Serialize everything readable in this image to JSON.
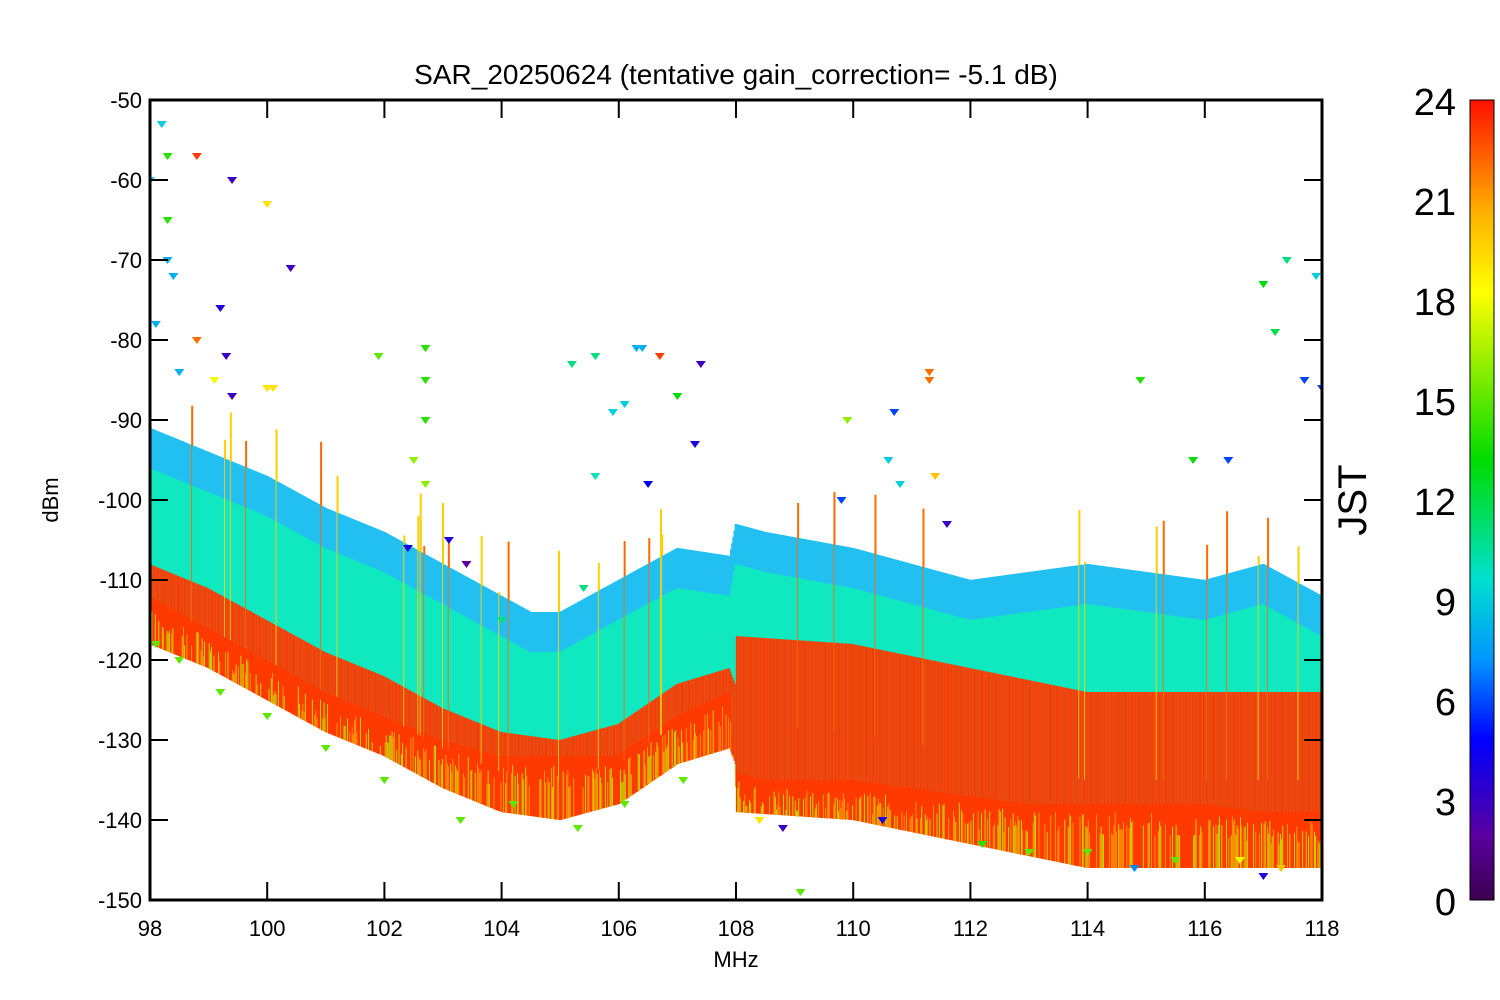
{
  "chart_data": {
    "type": "scatter",
    "title": "SAR_20250624 (tentative gain_correction= -5.1 dB)",
    "xlabel": "MHz",
    "ylabel": "dBm",
    "xlim": [
      98,
      118
    ],
    "ylim": [
      -150,
      -50
    ],
    "xticks": [
      "98",
      "100",
      "102",
      "104",
      "106",
      "108",
      "110",
      "112",
      "114",
      "116",
      "118"
    ],
    "yticks": [
      "-50",
      "-60",
      "-70",
      "-80",
      "-90",
      "-100",
      "-110",
      "-120",
      "-130",
      "-140",
      "-150"
    ],
    "grid": false,
    "colorbar": {
      "label": "JST",
      "range": [
        0,
        24
      ],
      "ticks": [
        "24",
        "21",
        "18",
        "15",
        "12",
        "9",
        "6",
        "3",
        "0"
      ],
      "colormap": "rainbow (purple-blue-cyan-green-yellow-orange-red)"
    },
    "series": [
      {
        "description": "noise-floor band envelope (upper edge, per frequency)",
        "x": [
          98,
          99,
          100,
          101,
          102,
          103,
          104,
          104.5,
          105,
          106,
          107,
          107.9,
          108,
          108.5,
          110,
          111,
          112,
          113,
          114,
          115,
          116,
          117,
          118
        ],
        "upper": [
          -91,
          -94,
          -97,
          -101,
          -104,
          -108,
          -112,
          -114,
          -114,
          -110,
          -106,
          -107,
          -103,
          -104,
          -106,
          -108,
          -110,
          -109,
          -108,
          -109,
          -110,
          -108,
          -112
        ],
        "lower": [
          -116,
          -120,
          -124,
          -128,
          -131,
          -134,
          -136,
          -136,
          -136,
          -136,
          -131,
          -128,
          -138,
          -139,
          -139,
          -140,
          -141,
          -142,
          -142,
          -142,
          -142,
          -143,
          -143
        ]
      },
      {
        "description": "red (late-night JST ~23) floor band",
        "x": [
          98,
          99,
          100,
          101,
          102,
          103,
          104,
          105,
          106,
          107,
          107.9,
          108,
          110,
          112,
          114,
          116,
          118
        ],
        "center": [
          -113,
          -116,
          -120,
          -124,
          -127,
          -131,
          -134,
          -135,
          -133,
          -128,
          -126,
          -128,
          -129,
          -132,
          -135,
          -135,
          -135
        ]
      },
      {
        "description": "outlier points (x MHz, y dBm, JST hour)",
        "points": [
          [
            98.2,
            -53,
            9
          ],
          [
            98.3,
            -57,
            14
          ],
          [
            98.3,
            -65,
            14
          ],
          [
            98.3,
            -70,
            8
          ],
          [
            98.0,
            -60,
            9
          ],
          [
            98.1,
            -78,
            8
          ],
          [
            98.4,
            -72,
            8
          ],
          [
            98.5,
            -84,
            8
          ],
          [
            98.8,
            -57,
            23
          ],
          [
            98.8,
            -80,
            22
          ],
          [
            99.4,
            -60,
            3
          ],
          [
            100.0,
            -63,
            19
          ],
          [
            100.4,
            -71,
            3
          ],
          [
            99.2,
            -76,
            4
          ],
          [
            99.3,
            -82,
            3
          ],
          [
            99.1,
            -85,
            18
          ],
          [
            99.4,
            -87,
            3
          ],
          [
            100.0,
            -86,
            19
          ],
          [
            100.1,
            -86,
            19
          ],
          [
            101.9,
            -82,
            15
          ],
          [
            102.7,
            -81,
            14
          ],
          [
            102.7,
            -85,
            14
          ],
          [
            102.7,
            -90,
            14
          ],
          [
            102.5,
            -95,
            16
          ],
          [
            102.7,
            -98,
            16
          ],
          [
            105.2,
            -83,
            11
          ],
          [
            105.6,
            -82,
            11
          ],
          [
            106.3,
            -81,
            8
          ],
          [
            106.4,
            -81,
            8
          ],
          [
            106.7,
            -82,
            23
          ],
          [
            107.0,
            -87,
            13
          ],
          [
            107.4,
            -83,
            3
          ],
          [
            107.3,
            -93,
            4
          ],
          [
            106.1,
            -88,
            9
          ],
          [
            105.9,
            -89,
            9
          ],
          [
            105.6,
            -97,
            10
          ],
          [
            106.5,
            -98,
            5
          ],
          [
            109.9,
            -90,
            16
          ],
          [
            110.7,
            -89,
            6
          ],
          [
            110.6,
            -95,
            9
          ],
          [
            110.8,
            -98,
            9
          ],
          [
            111.3,
            -84,
            22
          ],
          [
            111.3,
            -85,
            22
          ],
          [
            111.4,
            -97,
            20
          ],
          [
            111.6,
            -103,
            3
          ],
          [
            109.8,
            -100,
            6
          ],
          [
            114.9,
            -85,
            14
          ],
          [
            115.8,
            -95,
            13
          ],
          [
            116.4,
            -95,
            6
          ],
          [
            117.0,
            -73,
            13
          ],
          [
            117.2,
            -79,
            12
          ],
          [
            117.4,
            -70,
            11
          ],
          [
            117.9,
            -72,
            9
          ],
          [
            117.7,
            -85,
            6
          ],
          [
            118.0,
            -86,
            6
          ],
          [
            103.1,
            -105,
            4
          ],
          [
            103.4,
            -108,
            2
          ],
          [
            102.4,
            -106,
            4
          ],
          [
            104.0,
            -115,
            11
          ],
          [
            105.4,
            -111,
            11
          ],
          [
            109.1,
            -149,
            15
          ],
          [
            110.5,
            -140,
            4
          ],
          [
            114.8,
            -146,
            7
          ],
          [
            117.0,
            -147,
            4
          ],
          [
            117.3,
            -146,
            20
          ],
          [
            103.3,
            -140,
            15
          ],
          [
            104.2,
            -138,
            15
          ],
          [
            105.3,
            -141,
            15
          ],
          [
            106.1,
            -138,
            15
          ],
          [
            107.1,
            -135,
            15
          ],
          [
            98.1,
            -118,
            15
          ],
          [
            98.5,
            -120,
            15
          ],
          [
            99.2,
            -124,
            15
          ],
          [
            100.0,
            -127,
            15
          ],
          [
            101.0,
            -131,
            15
          ],
          [
            102.0,
            -135,
            15
          ],
          [
            108.4,
            -140,
            19
          ],
          [
            108.8,
            -141,
            3
          ],
          [
            112.2,
            -143,
            14
          ],
          [
            113.0,
            -144,
            15
          ],
          [
            114.0,
            -144,
            15
          ],
          [
            115.5,
            -145,
            15
          ],
          [
            116.6,
            -145,
            18
          ]
        ]
      }
    ]
  }
}
